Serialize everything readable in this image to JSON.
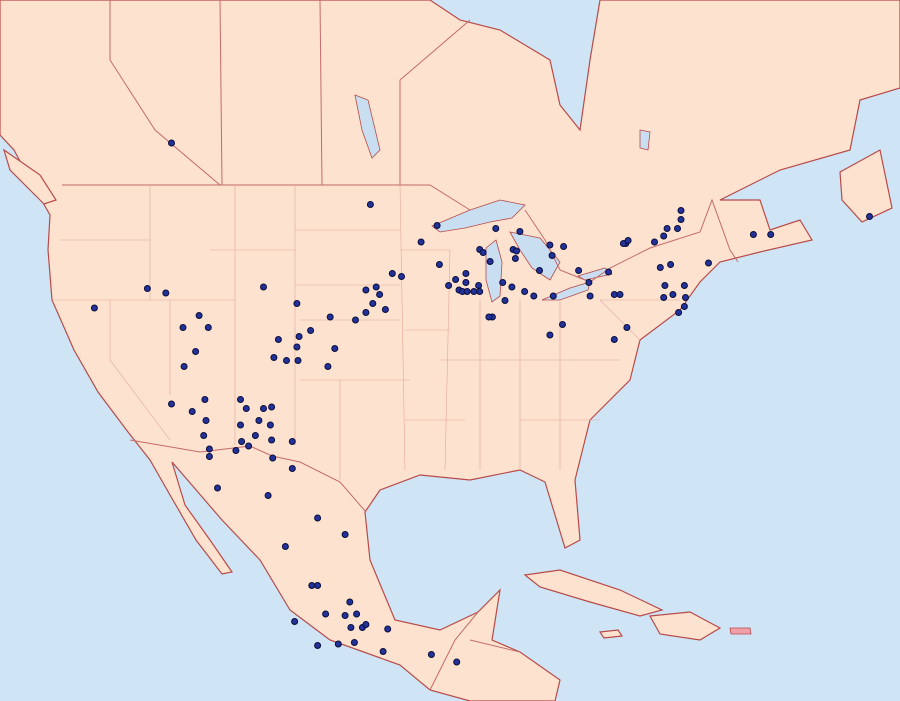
{
  "map": {
    "region": "North America",
    "colors": {
      "ocean": "#cfe5f5",
      "land": "#fde3cf",
      "border": "#c46a6a",
      "marker": "#23319a"
    },
    "marker_icon": "circle-dot",
    "occurrences_lonlat": [
      [
        -115.0,
        51.8
      ],
      [
        -117.1,
        42.1
      ],
      [
        -115.5,
        41.8
      ],
      [
        -107.0,
        42.2
      ],
      [
        -121.7,
        40.8
      ],
      [
        -112.6,
        40.3
      ],
      [
        -114.0,
        39.5
      ],
      [
        -111.8,
        39.5
      ],
      [
        -112.9,
        37.9
      ],
      [
        -113.9,
        36.9
      ],
      [
        -104.1,
        41.1
      ],
      [
        -102.9,
        39.3
      ],
      [
        -103.9,
        38.9
      ],
      [
        -105.7,
        38.7
      ],
      [
        -106.1,
        37.5
      ],
      [
        -105.0,
        37.3
      ],
      [
        -104.1,
        38.2
      ],
      [
        -104.0,
        37.3
      ],
      [
        -101.4,
        36.9
      ],
      [
        -100.8,
        38.1
      ],
      [
        -101.2,
        40.2
      ],
      [
        -99.0,
        40.0
      ],
      [
        -98.1,
        42.0
      ],
      [
        -97.2,
        42.2
      ],
      [
        -97.5,
        41.1
      ],
      [
        -98.1,
        40.5
      ],
      [
        -96.9,
        41.7
      ],
      [
        -96.4,
        40.7
      ],
      [
        -95.8,
        43.1
      ],
      [
        -95.0,
        42.9
      ],
      [
        -93.3,
        45.2
      ],
      [
        -91.9,
        46.3
      ],
      [
        -97.7,
        47.7
      ],
      [
        -91.7,
        43.7
      ],
      [
        -90.9,
        42.3
      ],
      [
        -90.3,
        42.7
      ],
      [
        -90.0,
        42.0
      ],
      [
        -89.4,
        43.1
      ],
      [
        -89.7,
        41.9
      ],
      [
        -89.3,
        41.9
      ],
      [
        -88.7,
        41.9
      ],
      [
        -88.2,
        41.9
      ],
      [
        -88.3,
        42.3
      ],
      [
        -89.4,
        42.5
      ],
      [
        -86.8,
        46.1
      ],
      [
        -88.2,
        44.7
      ],
      [
        -87.3,
        43.9
      ],
      [
        -87.9,
        44.5
      ],
      [
        -85.3,
        44.7
      ],
      [
        -85.0,
        44.6
      ],
      [
        -85.1,
        44.1
      ],
      [
        -86.2,
        42.5
      ],
      [
        -86.0,
        41.3
      ],
      [
        -87.1,
        40.2
      ],
      [
        -87.4,
        40.2
      ],
      [
        -85.4,
        42.2
      ],
      [
        -84.3,
        41.9
      ],
      [
        -83.5,
        41.6
      ],
      [
        -84.7,
        45.9
      ],
      [
        -82.1,
        45.0
      ],
      [
        -81.9,
        44.3
      ],
      [
        -83.0,
        43.3
      ],
      [
        -81.8,
        41.6
      ],
      [
        -79.6,
        43.3
      ],
      [
        -80.9,
        44.9
      ],
      [
        -82.1,
        39.0
      ],
      [
        -81.0,
        39.7
      ],
      [
        -78.7,
        42.5
      ],
      [
        -78.6,
        41.6
      ],
      [
        -77.0,
        43.2
      ],
      [
        -76.5,
        41.7
      ],
      [
        -76.0,
        41.7
      ],
      [
        -75.5,
        45.1
      ],
      [
        -75.7,
        45.1
      ],
      [
        -75.3,
        45.3
      ],
      [
        -73.0,
        45.2
      ],
      [
        -72.2,
        45.6
      ],
      [
        -70.7,
        46.7
      ],
      [
        -70.7,
        47.3
      ],
      [
        -71.9,
        46.1
      ],
      [
        -71.0,
        46.1
      ],
      [
        -72.5,
        43.5
      ],
      [
        -72.1,
        42.3
      ],
      [
        -72.2,
        41.5
      ],
      [
        -71.4,
        41.7
      ],
      [
        -71.6,
        43.7
      ],
      [
        -70.4,
        42.3
      ],
      [
        -70.3,
        41.5
      ],
      [
        -70.9,
        40.5
      ],
      [
        -70.4,
        40.9
      ],
      [
        -68.3,
        43.8
      ],
      [
        -64.4,
        45.7
      ],
      [
        -62.9,
        45.7
      ],
      [
        -54.3,
        46.9
      ],
      [
        -75.4,
        39.5
      ],
      [
        -76.5,
        38.7
      ],
      [
        -113.2,
        33.9
      ],
      [
        -115.0,
        34.4
      ],
      [
        -112.1,
        34.7
      ],
      [
        -112.0,
        33.3
      ],
      [
        -112.2,
        32.3
      ],
      [
        -111.7,
        31.4
      ],
      [
        -111.7,
        30.9
      ],
      [
        -109.0,
        34.7
      ],
      [
        -108.5,
        34.1
      ],
      [
        -107.0,
        34.1
      ],
      [
        -106.3,
        34.2
      ],
      [
        -109.0,
        33.0
      ],
      [
        -107.4,
        33.3
      ],
      [
        -107.7,
        32.3
      ],
      [
        -106.4,
        33.0
      ],
      [
        -106.3,
        32.0
      ],
      [
        -104.5,
        31.9
      ],
      [
        -108.9,
        31.9
      ],
      [
        -108.3,
        31.6
      ],
      [
        -109.4,
        31.3
      ],
      [
        -106.2,
        30.8
      ],
      [
        -104.5,
        30.1
      ],
      [
        -111.0,
        28.8
      ],
      [
        -106.6,
        28.3
      ],
      [
        -102.3,
        26.8
      ],
      [
        -105.1,
        24.9
      ],
      [
        -99.9,
        25.7
      ],
      [
        -102.8,
        22.3
      ],
      [
        -102.3,
        22.3
      ],
      [
        -99.5,
        21.2
      ],
      [
        -101.6,
        20.4
      ],
      [
        -104.3,
        19.9
      ],
      [
        -99.9,
        20.3
      ],
      [
        -98.9,
        20.4
      ],
      [
        -98.4,
        19.5
      ],
      [
        -98.1,
        19.7
      ],
      [
        -99.4,
        19.5
      ],
      [
        -96.2,
        19.4
      ],
      [
        -99.1,
        18.5
      ],
      [
        -96.6,
        17.9
      ],
      [
        -92.4,
        17.7
      ],
      [
        -90.2,
        17.2
      ],
      [
        -100.5,
        18.4
      ],
      [
        -102.3,
        18.3
      ]
    ]
  }
}
